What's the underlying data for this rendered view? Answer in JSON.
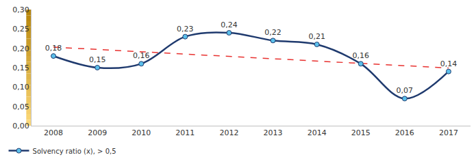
{
  "chart_data": {
    "type": "line",
    "categories": [
      "2008",
      "2009",
      "2010",
      "2011",
      "2012",
      "2013",
      "2014",
      "2015",
      "2016",
      "2017"
    ],
    "series": [
      {
        "name": "Solvency ratio (x), > 0,5",
        "color": "#1f3a6e",
        "marker": "circle",
        "line_style": "solid",
        "values": [
          0.18,
          0.15,
          0.16,
          0.23,
          0.24,
          0.22,
          0.21,
          0.16,
          0.07,
          0.14
        ],
        "value_labels": [
          "0,18",
          "0,15",
          "0,16",
          "0,23",
          "0,24",
          "0,22",
          "0,21",
          "0,16",
          "0,07",
          "0,14"
        ],
        "data_labels": true
      },
      {
        "color": "#e8312f",
        "line_style": "dashed",
        "values": [
          0.203,
          null,
          null,
          null,
          null,
          null,
          null,
          null,
          null,
          0.149
        ]
      }
    ],
    "ylim": [
      0,
      0.3
    ],
    "yticks": [
      {
        "value": 0,
        "label": "0,00"
      },
      {
        "value": 0.05,
        "label": "0,05"
      },
      {
        "value": 0.1,
        "label": "0,10"
      },
      {
        "value": 0.15,
        "label": "0,15"
      },
      {
        "value": 0.2,
        "label": "0,20"
      },
      {
        "value": 0.25,
        "label": "0,25"
      },
      {
        "value": 0.3,
        "label": "0,30"
      }
    ],
    "grid": false,
    "legend": "bottom left"
  }
}
